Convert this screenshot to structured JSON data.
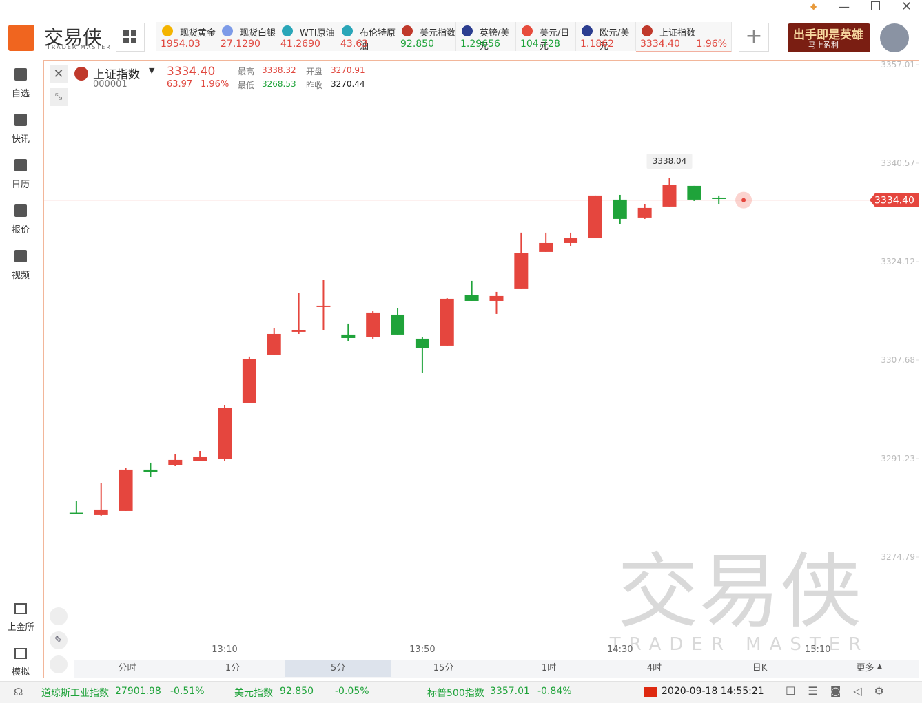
{
  "header": {
    "logo": "交易侠",
    "logo_sub": "TRADER MASTER",
    "banner": "出手即是英雄",
    "banner_sub": "马上盈利",
    "tickers": [
      {
        "name": "现货黄金",
        "price": "1954.03",
        "color": "#e0483f",
        "icon": "#f4b400"
      },
      {
        "name": "现货白银",
        "price": "27.1290",
        "color": "#e0483f",
        "icon": "#7d9be8"
      },
      {
        "name": "WTI原油",
        "price": "41.2690",
        "color": "#e0483f",
        "icon": "#2aa6b8"
      },
      {
        "name": "布伦特原油",
        "price": "43.63",
        "color": "#e0483f",
        "icon": "#2aa6b8"
      },
      {
        "name": "美元指数",
        "price": "92.850",
        "color": "#1fa33a",
        "icon": "#c0392b"
      },
      {
        "name": "英镑/美元",
        "price": "1.29656",
        "color": "#1fa33a",
        "icon": "#2c3e90"
      },
      {
        "name": "美元/日元",
        "price": "104.728",
        "color": "#1fa33a",
        "icon": "#e74c3c"
      },
      {
        "name": "欧元/美元",
        "price": "1.1862",
        "color": "#e0483f",
        "icon": "#2c3e90"
      },
      {
        "name": "上证指数",
        "price": "3334.40",
        "change": "1.96%",
        "color": "#e0483f",
        "icon": "#c0392b"
      }
    ]
  },
  "sidebar": {
    "top": [
      "自选",
      "快讯",
      "日历",
      "报价",
      "视频"
    ],
    "bottom": [
      "上金所",
      "模拟"
    ]
  },
  "quote": {
    "name": "上证指数",
    "code": "000001",
    "price": "3334.40",
    "change": "63.97",
    "change_pct": "1.96%",
    "high_label": "最高",
    "high": "3338.32",
    "open_label": "开盘",
    "open": "3270.91",
    "low_label": "最低",
    "low": "3268.53",
    "prev_label": "昨收",
    "prev": "3270.44"
  },
  "chart_data": {
    "type": "candlestick",
    "up_color": "#e5463e",
    "down_color": "#1fa33a",
    "grid": false,
    "categories": [
      null,
      null,
      null,
      null,
      null,
      null,
      null,
      "13:10",
      null,
      null,
      null,
      null,
      null,
      null,
      null,
      "13:50",
      null,
      null,
      null,
      null,
      null,
      null,
      null,
      "14:30",
      null,
      null,
      null,
      null,
      null,
      null,
      null,
      "15:10"
    ],
    "open": [
      null,
      3282.2,
      3281.81,
      3282.5,
      3289.4,
      3290.09,
      3290.78,
      3291.12,
      3300.55,
      3308.6,
      3312.51,
      3316.65,
      3311.94,
      3311.48,
      3315.27,
      3311.25,
      3310.1,
      3318.49,
      3317.57,
      3319.53,
      3325.74,
      3327.23,
      3328.03,
      3334.48,
      3331.49,
      3333.33,
      3336.78,
      3334.82,
      null,
      null,
      null,
      null
    ],
    "high": [
      null,
      3284.11,
      3287.21,
      3289.63,
      3290.55,
      3291.93,
      3292.5,
      3300.21,
      3308.26,
      3312.97,
      3318.84,
      3321.02,
      3313.78,
      3315.85,
      3316.31,
      3311.48,
      3318.03,
      3320.91,
      3319.07,
      3328.96,
      3328.96,
      3328.96,
      3335.17,
      3335.28,
      3333.67,
      3338.04,
      3336.78,
      3335.17,
      null,
      null,
      null,
      null
    ],
    "low": [
      null,
      3282.1,
      3281.58,
      3282.5,
      3288.13,
      3289.97,
      3290.78,
      3290.89,
      3300.44,
      3308.6,
      3312.05,
      3312.63,
      3310.9,
      3311.13,
      3311.94,
      3305.61,
      3309.98,
      3317.57,
      3315.39,
      3319.53,
      3325.74,
      3326.66,
      3328.03,
      3330.34,
      3331.26,
      3333.33,
      3334.25,
      3333.67,
      null,
      null,
      null,
      null
    ],
    "close": [
      null,
      3282.1,
      3282.73,
      3289.4,
      3288.94,
      3291.01,
      3291.58,
      3299.63,
      3307.8,
      3312.05,
      3312.63,
      3316.77,
      3311.36,
      3315.62,
      3311.94,
      3309.64,
      3317.92,
      3317.57,
      3318.38,
      3325.51,
      3327.23,
      3328.03,
      3335.17,
      3331.26,
      3333.1,
      3336.89,
      3334.48,
      3334.59,
      null,
      null,
      null,
      null
    ],
    "ylim": [
      3258.0,
      3357.7
    ],
    "yticks": [
      3274.79,
      3291.23,
      3307.68,
      3324.12,
      3340.57,
      3357.01
    ],
    "last_price": {
      "value": 3334.4,
      "label": "3334.40"
    },
    "annotation_index": 25,
    "watermark": "交易侠",
    "watermark_sub": "TRADER MASTER"
  },
  "periods": {
    "items": [
      "分时",
      "1分",
      "5分",
      "15分",
      "1时",
      "4时",
      "日K",
      "更多"
    ],
    "selected": 2
  },
  "status": {
    "indices": [
      {
        "name": "道琼斯工业指数",
        "price": "27901.98",
        "change": "-0.51%"
      },
      {
        "name": "美元指数",
        "price": "92.850",
        "change": "-0.05%"
      },
      {
        "name": "标普500指数",
        "price": "3357.01",
        "change": "-0.84%"
      }
    ],
    "datetime": "2020-09-18 14:55:21"
  }
}
